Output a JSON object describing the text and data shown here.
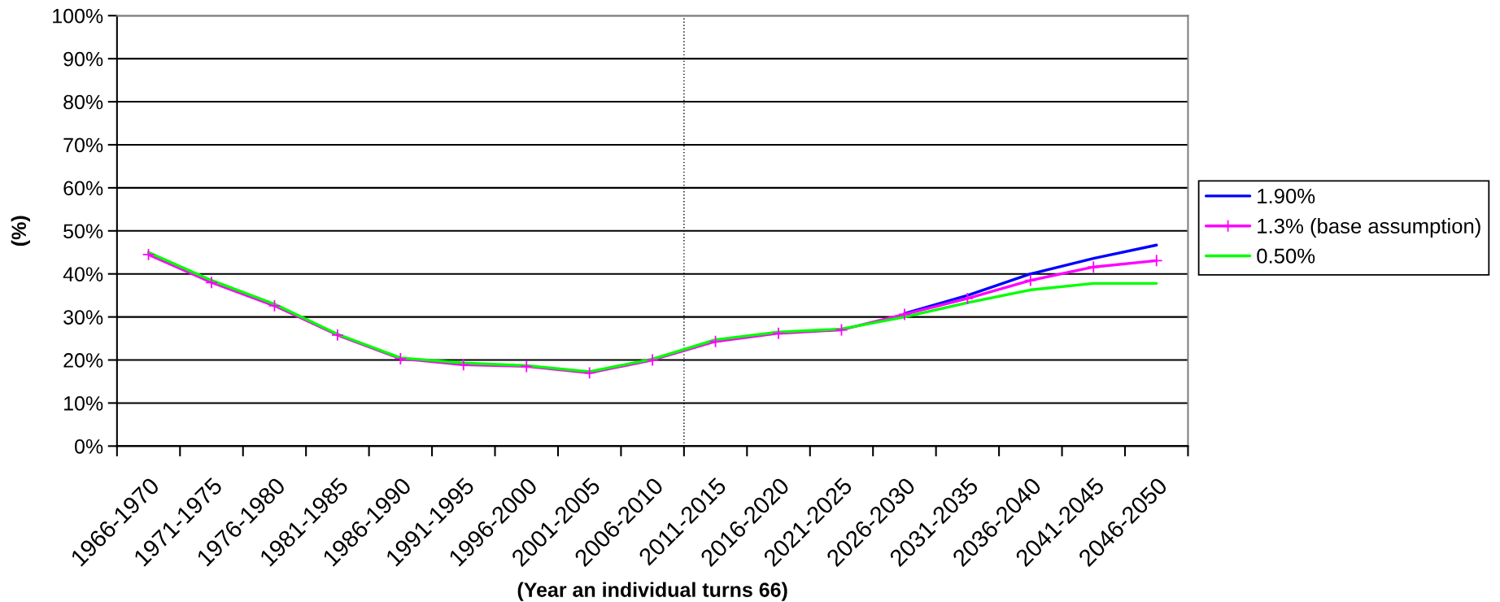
{
  "chart_data": {
    "type": "line",
    "categories": [
      "1966-1970",
      "1971-1975",
      "1976-1980",
      "1981-1985",
      "1986-1990",
      "1991-1995",
      "1996-2000",
      "2001-2005",
      "2006-2010",
      "2011-2015",
      "2016-2020",
      "2021-2025",
      "2026-2030",
      "2031-2035",
      "2036-2040",
      "2041-2045",
      "2046-2050"
    ],
    "series": [
      {
        "name": "1.90%",
        "color": "#0000ff",
        "marker": "none",
        "values": [
          null,
          null,
          null,
          null,
          null,
          null,
          null,
          null,
          null,
          null,
          null,
          null,
          30.8,
          35.0,
          40.0,
          43.6,
          46.7
        ]
      },
      {
        "name": "1.3% (base assumption)",
        "color": "#ff00ff",
        "marker": "cross",
        "values": [
          44.5,
          38.0,
          32.6,
          25.8,
          20.3,
          18.9,
          18.5,
          17.0,
          20.0,
          24.3,
          26.2,
          27.0,
          30.6,
          34.3,
          38.5,
          41.6,
          43.1
        ]
      },
      {
        "name": "0.50%",
        "color": "#00ff00",
        "marker": "none",
        "values": [
          45.0,
          38.5,
          33.0,
          26.0,
          20.5,
          19.3,
          18.7,
          17.3,
          20.2,
          24.7,
          26.5,
          27.2,
          30.0,
          33.3,
          36.3,
          37.8,
          37.8
        ]
      }
    ],
    "xlabel": "(Year an individual turns 66)",
    "ylabel": "(%)",
    "ylim": [
      0,
      100
    ],
    "yticks": [
      {
        "value": 0,
        "label": "0%"
      },
      {
        "value": 10,
        "label": "10%"
      },
      {
        "value": 20,
        "label": "20%"
      },
      {
        "value": 30,
        "label": "30%"
      },
      {
        "value": 40,
        "label": "40%"
      },
      {
        "value": 50,
        "label": "50%"
      },
      {
        "value": 60,
        "label": "60%"
      },
      {
        "value": 70,
        "label": "70%"
      },
      {
        "value": 80,
        "label": "80%"
      },
      {
        "value": 90,
        "label": "90%"
      },
      {
        "value": 100,
        "label": "100%"
      }
    ],
    "grid": "y",
    "legend": "right",
    "line_style": "solid"
  }
}
